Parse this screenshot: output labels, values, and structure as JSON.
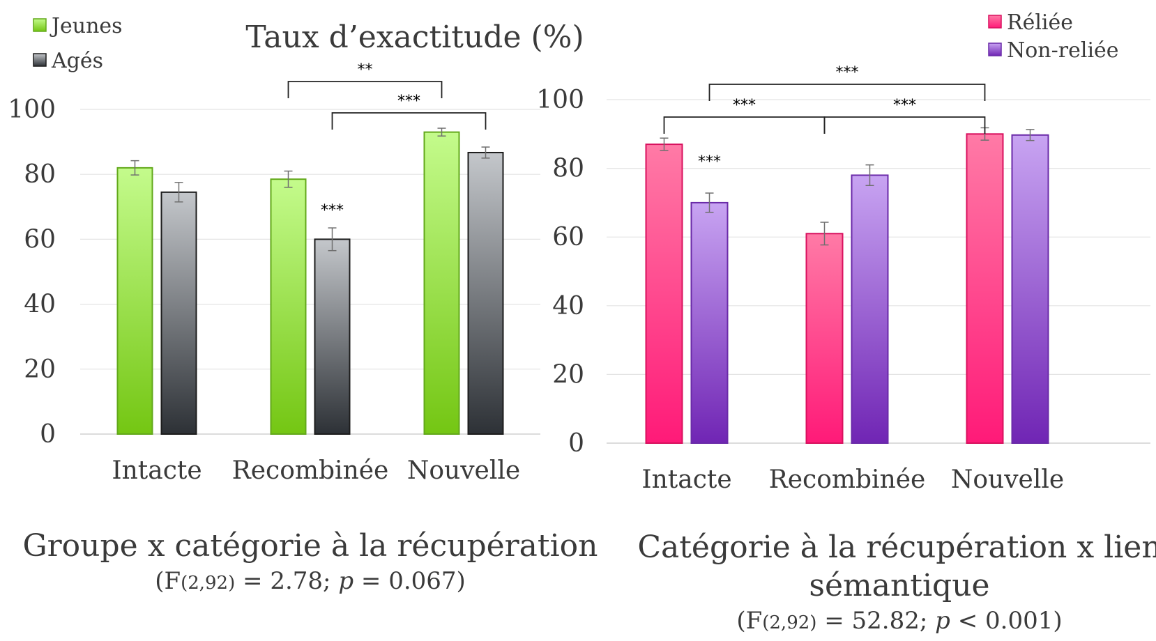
{
  "page_title": "Taux d’exactitude (%)",
  "chart_data": [
    {
      "type": "bar",
      "categories": [
        "Intacte",
        "Recombinée",
        "Nouvelle"
      ],
      "series": [
        {
          "name": "Jeunes",
          "values": [
            82,
            78.5,
            93
          ],
          "errors": [
            2.2,
            2.5,
            1.2
          ]
        },
        {
          "name": "Agés",
          "values": [
            74.5,
            60,
            86.7
          ],
          "errors": [
            3.0,
            3.5,
            1.7
          ]
        }
      ],
      "ylim": [
        0,
        100
      ],
      "yticks": [
        0,
        20,
        40,
        60,
        80,
        100
      ],
      "legend_position": "top-left",
      "grid": true,
      "colors": {
        "Jeunes": [
          "#c4fb8c",
          "#74c613",
          "#62a81a"
        ],
        "Agés": [
          "#c4c7cb",
          "#2d3136",
          "#1c1c1c"
        ]
      },
      "caption": "Groupe x catégorie à la récupération",
      "stats": {
        "prefix": "(F",
        "df": "(2,92)",
        "mid": " = 2.78; ",
        "p_symbol": "p",
        "p_value": " = 0.067)"
      },
      "annotations": [
        {
          "text": "***",
          "over": {
            "category": 1,
            "series": 1
          }
        },
        {
          "text": "**",
          "from": {
            "category": 1,
            "series": 0
          },
          "to": {
            "category": 2,
            "series": 0
          },
          "level": 1
        },
        {
          "text": "***",
          "from": {
            "category": 1,
            "series": 1
          },
          "to": {
            "category": 2,
            "series": 1
          },
          "level": 0
        }
      ]
    },
    {
      "type": "bar",
      "categories": [
        "Intacte",
        "Recombinée",
        "Nouvelle"
      ],
      "series": [
        {
          "name": "Réliée",
          "values": [
            87,
            61,
            90
          ],
          "errors": [
            1.8,
            3.3,
            1.8
          ]
        },
        {
          "name": "Non-reliée",
          "values": [
            70,
            78,
            89.7
          ],
          "errors": [
            2.8,
            3.0,
            1.6
          ]
        }
      ],
      "ylim": [
        0,
        100
      ],
      "yticks": [
        0,
        20,
        40,
        60,
        80,
        100
      ],
      "legend_position": "top-right",
      "grid": true,
      "colors": {
        "Réliée": [
          "#ff7aa6",
          "#ff1a78",
          "#d8105e"
        ],
        "Non-reliée": [
          "#c8a4f2",
          "#7025b4",
          "#6a2aa8"
        ]
      },
      "caption_lines": [
        "Catégorie à la récupération x lien",
        "sémantique"
      ],
      "stats": {
        "prefix": "(F",
        "df": "(2,92)",
        "mid": " = 52.82; ",
        "p_symbol": "p",
        "p_value": " < 0.001)"
      },
      "annotations": [
        {
          "text": "***",
          "over": {
            "category": 0,
            "series": 1
          }
        },
        {
          "text": "***",
          "from": {
            "category": 0,
            "series": 0
          },
          "to": {
            "category": 1,
            "series": 0
          },
          "level": 1
        },
        {
          "text": "***",
          "from": {
            "category": 1,
            "series": 0
          },
          "to": {
            "category": 2,
            "series": 0
          },
          "level": 1
        },
        {
          "text": "***",
          "from": {
            "category": 0,
            "series": 1
          },
          "to": {
            "category": 2,
            "series": 0
          },
          "level": 2
        }
      ]
    }
  ]
}
